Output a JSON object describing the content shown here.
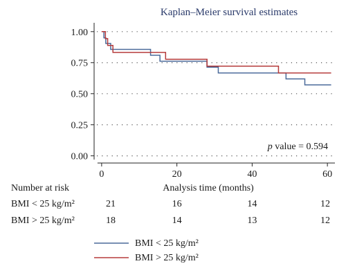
{
  "chart_data": {
    "type": "line",
    "title": "Kaplan–Meier survival estimates",
    "xlabel": "Analysis time (months)",
    "ylabel": "",
    "xlim": [
      -2,
      62
    ],
    "ylim": [
      -0.03,
      1.06
    ],
    "x_ticks": [
      0,
      20,
      40,
      60
    ],
    "y_ticks": [
      0.0,
      0.25,
      0.5,
      0.75,
      1.0
    ],
    "y_tick_labels": [
      "0.00",
      "0.25",
      "0.50",
      "0.75",
      "1.00"
    ],
    "grid": "horizontal dotted",
    "annotation_italic": "p",
    "annotation_text": " value = 0.594",
    "series": [
      {
        "name": "BMI < 25 kg/m²",
        "color": "#4a6a9a",
        "steps": [
          [
            0,
            1.0
          ],
          [
            0.6,
            0.95
          ],
          [
            1.1,
            0.905
          ],
          [
            2.4,
            0.857
          ],
          [
            13.0,
            0.81
          ],
          [
            15.5,
            0.762
          ],
          [
            28.0,
            0.714
          ],
          [
            31.0,
            0.667
          ],
          [
            49.0,
            0.619
          ],
          [
            54.0,
            0.571
          ],
          [
            61.0,
            0.571
          ]
        ]
      },
      {
        "name": "BMI > 25 kg/m²",
        "color": "#b53a3a",
        "steps": [
          [
            0,
            1.0
          ],
          [
            1.0,
            0.944
          ],
          [
            1.6,
            0.889
          ],
          [
            3.0,
            0.833
          ],
          [
            17.0,
            0.778
          ],
          [
            28.0,
            0.722
          ],
          [
            47.0,
            0.667
          ],
          [
            61.0,
            0.667
          ]
        ]
      }
    ],
    "risk_table": {
      "title": "Number at risk",
      "times": [
        0,
        20,
        40,
        60
      ],
      "rows": [
        {
          "label": "BMI < 25 kg/m²",
          "counts": [
            "21",
            "16",
            "14",
            "12"
          ]
        },
        {
          "label": "BMI > 25 kg/m²",
          "counts": [
            "18",
            "14",
            "13",
            "12"
          ]
        }
      ]
    },
    "legend": [
      {
        "label": "BMI < 25 kg/m²",
        "color": "#4a6a9a"
      },
      {
        "label": "BMI > 25 kg/m²",
        "color": "#b53a3a"
      }
    ]
  }
}
